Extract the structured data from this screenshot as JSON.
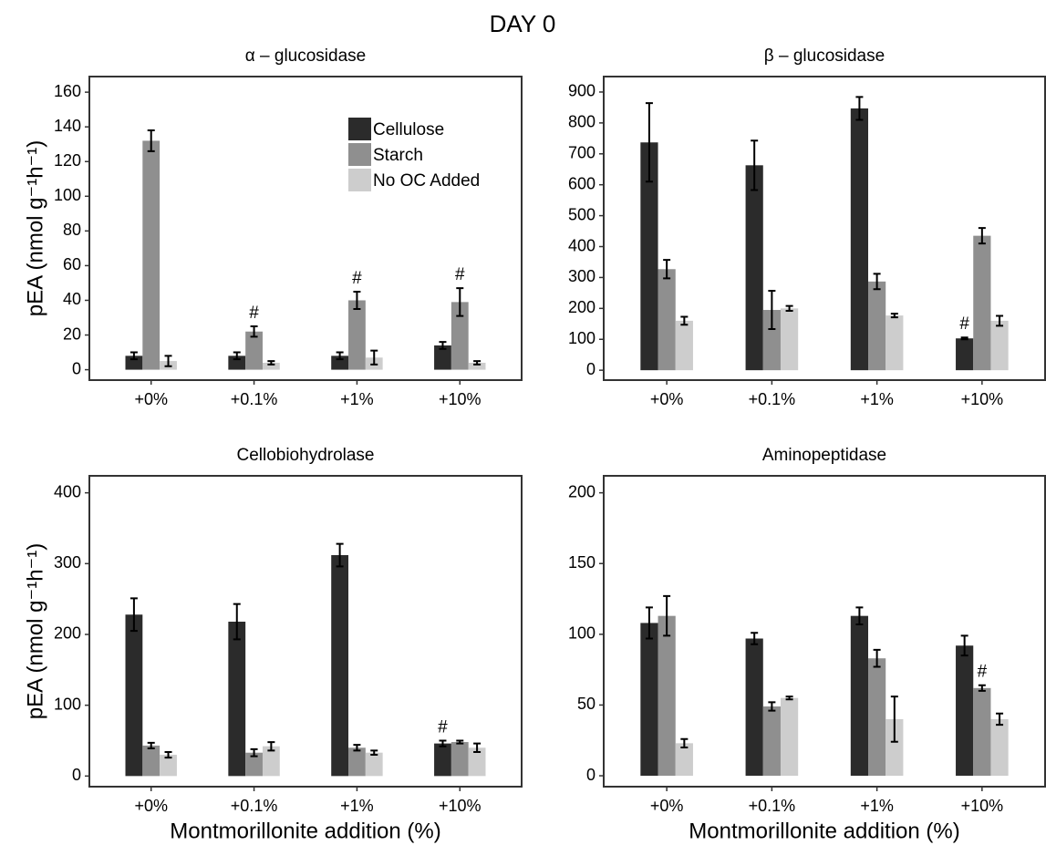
{
  "title": "DAY 0",
  "chart_data": [
    {
      "type": "bar",
      "title": "α – glucosidase",
      "y_label": "pEA (nmol g⁻¹h⁻¹)",
      "legend": "top-right",
      "categories": [
        "+0%",
        "+0.1%",
        "+1%",
        "+10%"
      ],
      "series": [
        {
          "name": "Cellulose",
          "color": "#2b2b2b",
          "values": [
            8,
            8,
            8,
            14
          ],
          "errors": [
            2,
            2,
            2,
            2
          ],
          "markers": [
            null,
            null,
            null,
            null
          ]
        },
        {
          "name": "Starch",
          "color": "#8f8f8f",
          "values": [
            132,
            22,
            40,
            39
          ],
          "errors": [
            6,
            3,
            5,
            8
          ],
          "markers": [
            null,
            "#",
            "#",
            "#"
          ]
        },
        {
          "name": "No OC Added",
          "color": "#cdcdcd",
          "values": [
            5,
            4,
            7,
            4
          ],
          "errors": [
            3,
            1,
            4,
            1
          ],
          "markers": [
            null,
            null,
            null,
            null
          ]
        }
      ],
      "ylim": [
        -6,
        169
      ],
      "yticks": [
        0,
        20,
        40,
        60,
        80,
        100,
        120,
        140,
        160
      ]
    },
    {
      "type": "bar",
      "title": "β – glucosidase",
      "categories": [
        "+0%",
        "+0.1%",
        "+1%",
        "+10%"
      ],
      "series": [
        {
          "color": "#2b2b2b",
          "values": [
            737,
            663,
            847,
            103
          ],
          "errors": [
            127,
            80,
            37,
            3
          ],
          "markers": [
            null,
            null,
            null,
            "#"
          ]
        },
        {
          "color": "#8f8f8f",
          "values": [
            327,
            195,
            287,
            435
          ],
          "errors": [
            30,
            62,
            25,
            25
          ],
          "markers": [
            null,
            null,
            null,
            null
          ]
        },
        {
          "color": "#cdcdcd",
          "values": [
            160,
            200,
            177,
            160
          ],
          "errors": [
            13,
            8,
            6,
            16
          ],
          "markers": [
            null,
            null,
            null,
            null
          ]
        }
      ],
      "ylim": [
        -32,
        950
      ],
      "yticks": [
        0,
        100,
        200,
        300,
        400,
        500,
        600,
        700,
        800,
        900
      ]
    },
    {
      "type": "bar",
      "title": "Cellobiohydrolase",
      "y_label": "pEA (nmol g⁻¹h⁻¹)",
      "x_label": "Montmorillonite addition (%)",
      "categories": [
        "+0%",
        "+0.1%",
        "+1%",
        "+10%"
      ],
      "series": [
        {
          "color": "#2b2b2b",
          "values": [
            228,
            218,
            312,
            46
          ],
          "errors": [
            23,
            25,
            16,
            4
          ],
          "markers": [
            null,
            null,
            null,
            "#"
          ]
        },
        {
          "color": "#8f8f8f",
          "values": [
            43,
            33,
            40,
            48
          ],
          "errors": [
            4,
            5,
            4,
            2
          ],
          "markers": [
            null,
            null,
            null,
            null
          ]
        },
        {
          "color": "#cdcdcd",
          "values": [
            30,
            42,
            33,
            40
          ],
          "errors": [
            4,
            6,
            3,
            6
          ],
          "markers": [
            null,
            null,
            null,
            null
          ]
        }
      ],
      "ylim": [
        -15,
        424
      ],
      "yticks": [
        0,
        100,
        200,
        300,
        400
      ]
    },
    {
      "type": "bar",
      "title": "Aminopeptidase",
      "x_label": "Montmorillonite addition (%)",
      "categories": [
        "+0%",
        "+0.1%",
        "+1%",
        "+10%"
      ],
      "series": [
        {
          "color": "#2b2b2b",
          "values": [
            108,
            97,
            113,
            92
          ],
          "errors": [
            11,
            4,
            6,
            7
          ],
          "markers": [
            null,
            null,
            null,
            null
          ]
        },
        {
          "color": "#8f8f8f",
          "values": [
            113,
            49,
            83,
            62
          ],
          "errors": [
            14,
            3,
            6,
            2
          ],
          "markers": [
            null,
            null,
            null,
            "#"
          ]
        },
        {
          "color": "#cdcdcd",
          "values": [
            23,
            55,
            40,
            40
          ],
          "errors": [
            3,
            1,
            16,
            4
          ],
          "markers": [
            null,
            null,
            null,
            null
          ]
        }
      ],
      "ylim": [
        -7.7,
        212
      ],
      "yticks": [
        0,
        50,
        100,
        150,
        200
      ]
    }
  ]
}
